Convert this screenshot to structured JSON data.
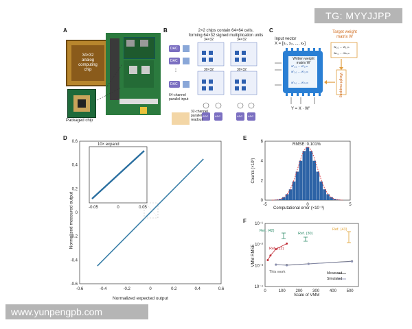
{
  "watermarks": {
    "top": "TG: MYYJJPP",
    "bottom": "www.yunpengpb.com"
  },
  "panel_a": {
    "letter": "A",
    "chip_text": [
      "34×32",
      "analog",
      "computing",
      "chip"
    ],
    "packaged_label": "Packaged chip"
  },
  "panel_b": {
    "letter": "B",
    "header": [
      "2×2 chips contain 64×64 cells,",
      "forming 64×32 signed multiplication units"
    ],
    "block_labels": [
      "34×32",
      "34×32",
      "30×32",
      "30×32"
    ],
    "dac_label": "DAC",
    "adc_label": "ADC",
    "input_note": [
      "64-channel",
      "parallel input"
    ],
    "readout_note": [
      "32-channel",
      "parallel",
      "readout"
    ]
  },
  "panel_c": {
    "letter": "C",
    "input_vector": [
      "Input vector",
      "X = [x₁, x₂, ..., xₙ]"
    ],
    "target_weight": [
      "Target weight",
      "matrix W"
    ],
    "written_weight": [
      "Written weight",
      "matrix W'"
    ],
    "output": "Y = X · W'",
    "side_label": "Weight mapping"
  },
  "panel_d": {
    "letter": "D",
    "inset_title": "10× expand",
    "xlabel": "Normalized expected output",
    "ylabel": "Normalized measured output",
    "inset_ticks": [
      "-0.05",
      "0",
      "0.05"
    ],
    "x_ticks": [
      "-0.6",
      "-0.4",
      "-0.2",
      "0",
      "0.2",
      "0.4",
      "0.6"
    ],
    "y_ticks": [
      "0.6",
      "0.4",
      "0.2",
      "0",
      "-0.2",
      "-0.4",
      "-0.6"
    ]
  },
  "chart_data": [
    {
      "type": "scatter",
      "title": "",
      "xlabel": "Normalized expected output",
      "ylabel": "Normalized measured output",
      "xlim": [
        -0.6,
        0.6
      ],
      "ylim": [
        -0.6,
        0.6
      ],
      "series": [
        {
          "x": [
            -0.45,
            -0.3,
            -0.15,
            0,
            0.15,
            0.3,
            0.45
          ],
          "values": [
            -0.45,
            -0.3,
            -0.15,
            0,
            0.15,
            0.3,
            0.45
          ]
        }
      ]
    },
    {
      "type": "bar",
      "title": "RMSE: 0.101%",
      "xlabel": "Computational error (×10⁻³)",
      "ylabel": "Counts (×10³)",
      "xlim": [
        -5,
        5
      ],
      "ylim": [
        0,
        6
      ],
      "x_ticks": [
        "-5",
        "0",
        "5"
      ],
      "y_ticks": [
        "0",
        "2",
        "4",
        "6"
      ],
      "bin_centers": [
        -3.6,
        -3.2,
        -2.8,
        -2.4,
        -2.0,
        -1.6,
        -1.2,
        -0.8,
        -0.4,
        0.0,
        0.4,
        0.8,
        1.2,
        1.6,
        2.0,
        2.4,
        2.8,
        3.2,
        3.6
      ],
      "values": [
        0.05,
        0.12,
        0.3,
        0.6,
        1.1,
        1.9,
        2.9,
        4.0,
        5.0,
        5.4,
        5.0,
        4.0,
        2.9,
        1.9,
        1.1,
        0.6,
        0.3,
        0.12,
        0.05
      ]
    },
    {
      "type": "line",
      "title": "",
      "xlabel": "Scale of VMM",
      "ylabel": "VMM RMSE",
      "log_y": true,
      "xlim": [
        0,
        550
      ],
      "ylim_exp": [
        -4,
        -1
      ],
      "x_ticks": [
        "0",
        "100",
        "200",
        "300",
        "400",
        "500"
      ],
      "y_ticks": [
        "10⁻¹",
        "10⁻²",
        "10⁻³",
        "10⁻⁴"
      ],
      "series": [
        {
          "name": "Measured",
          "x": [
            64,
            128,
            256,
            512
          ],
          "values": [
            0.0011,
            0.00105,
            0.0012,
            0.0016
          ]
        },
        {
          "name": "Simulated",
          "x": [
            64,
            128,
            256,
            512
          ],
          "values": [
            0.0011,
            0.00102,
            0.00118,
            0.00155
          ]
        },
        {
          "name": "Ref. (12)",
          "x": [
            16,
            32,
            64,
            128
          ],
          "values": [
            0.0018,
            0.003,
            0.006,
            0.011
          ]
        }
      ],
      "annotations": [
        "Ref. (42)",
        "Ref. (30)",
        "Ref. (43)",
        "Ref. (12)",
        "This work"
      ],
      "legend": [
        "Measured",
        "Simulated"
      ]
    }
  ]
}
